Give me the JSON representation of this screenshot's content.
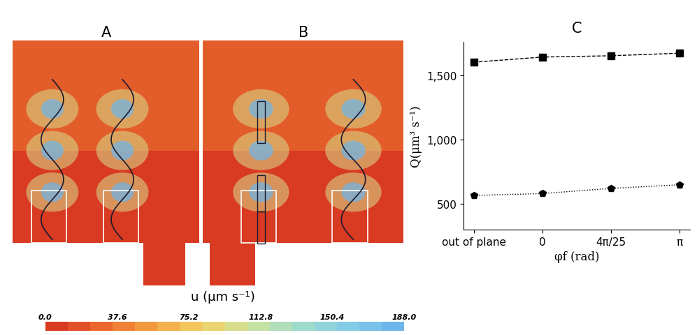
{
  "panels": [
    {
      "title": "A"
    },
    {
      "title": "B"
    }
  ],
  "colorbar": {
    "label": "u (μm s⁻¹)",
    "range": [
      0,
      188
    ],
    "ticks": [
      {
        "value": 0,
        "label": "0.0"
      },
      37.6,
      75.2,
      112.8,
      150.4,
      {
        "value": 188,
        "label": "188.0"
      }
    ]
  },
  "chart_data": {
    "type": "line",
    "title": "C",
    "x_label": "φf (rad)",
    "y_label": "Q(μm³ s⁻¹)",
    "categories": [
      "out of plane",
      "0",
      "4π/25",
      "π"
    ],
    "series": [
      {
        "color": "#000000",
        "marker": "square",
        "line_style": "dashed",
        "values": [
          1600,
          1640,
          1650,
          1670
        ]
      },
      {
        "color": "#000000",
        "marker": "pentagon",
        "line_style": "dotted",
        "values": [
          565,
          580,
          620,
          648
        ]
      }
    ],
    "ylim": [
      300,
      1760
    ],
    "yticks": [
      500,
      {
        "value": 1000,
        "label": "1,000"
      },
      {
        "value": 1500,
        "label": "1,500"
      }
    ]
  }
}
